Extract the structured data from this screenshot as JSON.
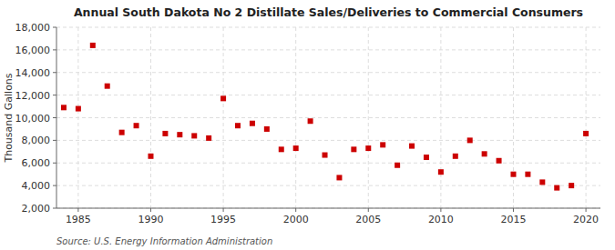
{
  "chart_data": {
    "type": "scatter",
    "title": "Annual South Dakota No 2 Distillate Sales/Deliveries to Commercial Consumers",
    "ylabel": "Thousand Gallons",
    "annotations": [
      "Source: U.S. Energy Information Administration"
    ],
    "x": [
      1984,
      1985,
      1986,
      1987,
      1988,
      1989,
      1990,
      1991,
      1992,
      1993,
      1994,
      1995,
      1996,
      1997,
      1998,
      1999,
      2000,
      2001,
      2002,
      2003,
      2004,
      2005,
      2006,
      2007,
      2008,
      2009,
      2010,
      2011,
      2012,
      2013,
      2014,
      2015,
      2016,
      2017,
      2018,
      2019,
      2020
    ],
    "values": [
      10900,
      10800,
      16400,
      12800,
      8700,
      9300,
      6600,
      8600,
      8500,
      8400,
      8200,
      11700,
      9300,
      9500,
      9000,
      7200,
      7300,
      9700,
      6700,
      4700,
      7200,
      7300,
      7600,
      5800,
      7500,
      6500,
      5200,
      6600,
      8000,
      6800,
      6200,
      5000,
      5000,
      4300,
      3800,
      4000,
      8600
    ],
    "color": "#cc0000",
    "marker": "square",
    "xlim": [
      1983.5,
      2021
    ],
    "ylim": [
      2000,
      18000
    ],
    "xticks": [
      1985,
      1990,
      1995,
      2000,
      2005,
      2010,
      2015,
      2020
    ],
    "yticks": [
      {
        "value": 2000,
        "label": "2,000"
      },
      {
        "value": 4000,
        "label": "4,000"
      },
      {
        "value": 6000,
        "label": "6,000"
      },
      {
        "value": 8000,
        "label": "8,000"
      },
      {
        "value": 10000,
        "label": "10,000"
      },
      {
        "value": 12000,
        "label": "12,000"
      },
      {
        "value": 14000,
        "label": "14,000"
      },
      {
        "value": 16000,
        "label": "16,000"
      },
      {
        "value": 18000,
        "label": "18,000"
      }
    ],
    "grid": true
  }
}
